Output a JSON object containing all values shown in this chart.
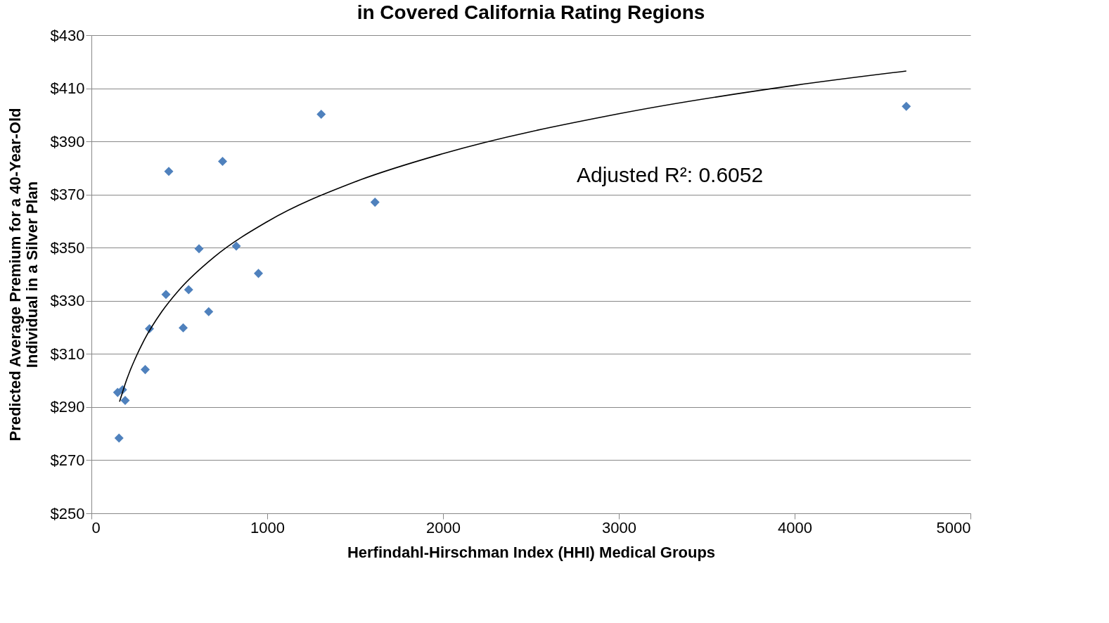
{
  "chart_data": {
    "type": "scatter",
    "title": "in Covered California Rating Regions",
    "xlabel": "Herfindahl-Hirschman Index (HHI) Medical Groups",
    "ylabel": "Predicted Average Premium for a 40-Year-Old Individual in a Silver Plan",
    "annotations": [
      "Adjusted  R²:  0.6052"
    ],
    "series": [
      {
        "type": "scatter",
        "color": "#4f81bd",
        "marker": "diamond",
        "x": [
          157,
          149,
          177,
          192,
          306,
          330,
          424,
          440,
          522,
          553,
          612,
          667,
          746,
          824,
          950,
          1307,
          1613,
          4635
        ],
        "values": [
          278.3,
          295.5,
          296.5,
          292.5,
          304.1,
          319.5,
          332.4,
          378.7,
          319.8,
          334.2,
          349.6,
          325.9,
          382.5,
          350.6,
          340.3,
          400.2,
          367.1,
          403.2
        ]
      },
      {
        "type": "line",
        "color": "#000000",
        "x": [
          160,
          200,
          300,
          400,
          500,
          700,
          1000,
          1500,
          2000,
          3000,
          4000,
          4635
        ],
        "values": [
          292,
          300.2,
          315.2,
          325.9,
          334.2,
          346.6,
          359.8,
          374.8,
          385.4,
          400.4,
          411.1,
          416.5
        ]
      }
    ],
    "xlim": [
      0,
      5000
    ],
    "xticks": [
      0,
      1000,
      2000,
      3000,
      4000,
      5000
    ],
    "ylim": [
      250,
      430
    ],
    "yticks": [
      {
        "value": 250,
        "label": "$250"
      },
      {
        "value": 270,
        "label": "$270"
      },
      {
        "value": 290,
        "label": "$290"
      },
      {
        "value": 310,
        "label": "$310"
      },
      {
        "value": 330,
        "label": "$330"
      },
      {
        "value": 350,
        "label": "$350"
      },
      {
        "value": 370,
        "label": "$370"
      },
      {
        "value": 390,
        "label": "$390"
      },
      {
        "value": 410,
        "label": "$410"
      },
      {
        "value": 430,
        "label": "$430"
      }
    ],
    "grid": "y"
  }
}
